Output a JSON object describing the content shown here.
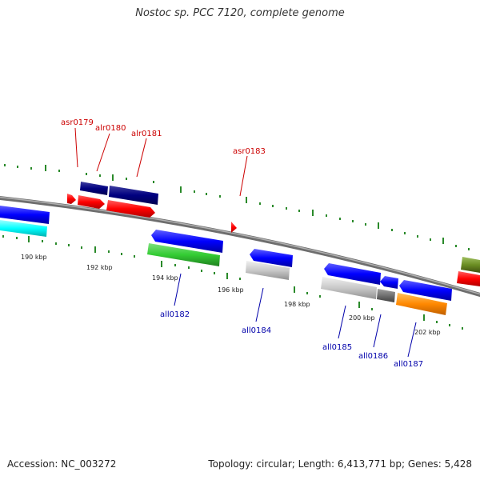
{
  "title": "Nostoc sp. PCC 7120, complete genome",
  "footer": {
    "accession": "Accession: NC_003272",
    "summary": "Topology: circular; Length: 6,413,771 bp; Genes: 5,428"
  },
  "colors": {
    "backbone": "#808080",
    "forward_label": "#cc0000",
    "reverse_label": "#0000aa",
    "tick": "#2a8a2a"
  },
  "kbp_labels": [
    "190 kbp",
    "192 kbp",
    "194 kbp",
    "196 kbp",
    "198 kbp",
    "200 kbp",
    "202 kbp"
  ],
  "genes": [
    {
      "id": "asr0179",
      "label": "asr0179",
      "strand": "forward",
      "color": "#ff0000"
    },
    {
      "id": "alr0180",
      "label": "alr0180",
      "strand": "forward",
      "color": "#ff0000"
    },
    {
      "id": "alr0181",
      "label": "alr0181",
      "strand": "forward",
      "color": "#ff0000"
    },
    {
      "id": "asr0183",
      "label": "asr0183",
      "strand": "forward",
      "color": "#ff0000"
    },
    {
      "id": "all0182",
      "label": "all0182",
      "strand": "reverse",
      "color": "#0000ff"
    },
    {
      "id": "all0184",
      "label": "all0184",
      "strand": "reverse",
      "color": "#0000ff"
    },
    {
      "id": "all0185",
      "label": "all0185",
      "strand": "reverse",
      "color": "#0000ff"
    },
    {
      "id": "all0186",
      "label": "all0186",
      "strand": "reverse",
      "color": "#0000ff"
    },
    {
      "id": "all0187",
      "label": "all0187",
      "strand": "reverse",
      "color": "#0000ff"
    }
  ]
}
